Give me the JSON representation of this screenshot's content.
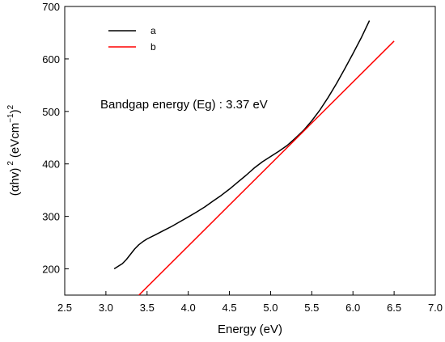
{
  "chart_data": {
    "type": "line",
    "xlabel": "Energy (eV)",
    "ylabel_main": "(αhv)",
    "ylabel_exp": "2",
    "ylabel_unit": "(eVcm",
    "ylabel_unit_exp": "−1",
    "ylabel_close": ")",
    "ylabel_close_exp": "2",
    "xlim": [
      2.5,
      7.0
    ],
    "ylim": [
      150,
      700
    ],
    "x_ticks": [
      2.5,
      3.0,
      3.5,
      4.0,
      4.5,
      5.0,
      5.5,
      6.0,
      6.5,
      7.0
    ],
    "x_tick_labels": [
      "2.5",
      "3.0",
      "3.5",
      "4.0",
      "4.5",
      "5.0",
      "5.5",
      "6.0",
      "6.5",
      "7.0"
    ],
    "y_ticks": [
      200,
      300,
      400,
      500,
      600,
      700
    ],
    "y_tick_labels": [
      "200",
      "300",
      "400",
      "500",
      "600",
      "700"
    ],
    "grid": false,
    "legend_position": "top-left",
    "annotation": "Bandgap energy (Eg) : 3.37 eV",
    "series": [
      {
        "name": "a",
        "color": "#000000",
        "x": [
          3.1,
          3.15,
          3.2,
          3.25,
          3.3,
          3.35,
          3.4,
          3.45,
          3.5,
          3.6,
          3.7,
          3.8,
          3.9,
          4.0,
          4.1,
          4.2,
          4.3,
          4.4,
          4.5,
          4.6,
          4.7,
          4.8,
          4.9,
          5.0,
          5.1,
          5.2,
          5.3,
          5.4,
          5.5,
          5.6,
          5.7,
          5.8,
          5.9,
          6.0,
          6.1,
          6.2
        ],
        "y": [
          200,
          205,
          210,
          218,
          228,
          238,
          246,
          252,
          257,
          265,
          273,
          281,
          290,
          299,
          308,
          318,
          329,
          340,
          352,
          365,
          378,
          392,
          404,
          414,
          424,
          435,
          449,
          464,
          482,
          503,
          527,
          553,
          581,
          610,
          640,
          673
        ]
      },
      {
        "name": "b",
        "color": "#ff0000",
        "x": [
          3.37,
          6.5
        ],
        "y": [
          145,
          634
        ]
      }
    ]
  }
}
